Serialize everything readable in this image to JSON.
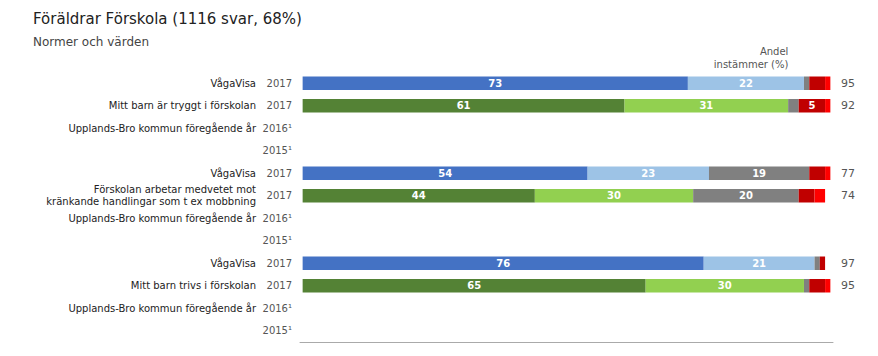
{
  "chart_data": {
    "type": "bar",
    "orientation": "horizontal",
    "stacked": true,
    "data_labels": true,
    "grid": false,
    "tick_labels": false,
    "title": "Föräldrar Förskola (1116 svar, 68%)",
    "subtitle": "Normer och värden",
    "annotations": [
      "Andel",
      "instämmer (%)"
    ],
    "categories": [
      "2017",
      "2017",
      "2016¹",
      "2015¹",
      "2017",
      "2017",
      "2016¹",
      "2015¹",
      "2017",
      "2017",
      "2016¹",
      "2015¹"
    ],
    "row_labels": [
      "VågaVisa",
      "Mitt barn är tryggt i förskolan",
      "Upplands-Bro kommun föregående år",
      null,
      "VågaVisa",
      "Förskolan arbetar medvetet mot\nkränkande handlingar som t ex mobbning",
      "Upplands-Bro kommun föregående år",
      null,
      "VågaVisa",
      "Mitt barn trivs i förskolan",
      "Upplands-Bro kommun föregående år",
      null
    ],
    "totals": [
      95,
      92,
      null,
      null,
      77,
      74,
      null,
      null,
      97,
      95,
      null,
      null
    ],
    "xlim": [
      -0.5,
      100.5
    ],
    "series": [
      {
        "values": [
          73,
          61,
          null,
          null,
          54,
          44,
          null,
          null,
          76,
          65,
          null,
          null
        ],
        "colors": [
          "#4472C4",
          "#548235",
          null,
          null,
          "#4472C4",
          "#548235",
          null,
          null,
          "#4472C4",
          "#548235",
          null,
          null
        ],
        "value_labels": [
          "73",
          "61",
          null,
          null,
          "54",
          "44",
          null,
          null,
          "76",
          "65",
          null,
          null
        ]
      },
      {
        "values": [
          22,
          31,
          null,
          null,
          23,
          30,
          null,
          null,
          21,
          30,
          null,
          null
        ],
        "colors": [
          "#9DC3E6",
          "#92D050",
          null,
          null,
          "#9DC3E6",
          "#92D050",
          null,
          null,
          "#9DC3E6",
          "#92D050",
          null,
          null
        ],
        "value_labels": [
          "22",
          "31",
          null,
          null,
          "23",
          "30",
          null,
          null,
          "21",
          "30",
          null,
          null
        ]
      },
      {
        "values": [
          1,
          2,
          null,
          null,
          19,
          20,
          null,
          null,
          1,
          1,
          null,
          null
        ],
        "colors": [
          "#808080",
          "#808080",
          null,
          null,
          "#808080",
          "#808080",
          null,
          null,
          "#808080",
          "#808080",
          null,
          null
        ],
        "value_labels": [
          null,
          null,
          null,
          null,
          "19",
          "20",
          null,
          null,
          null,
          null,
          null,
          null
        ]
      },
      {
        "values": [
          3,
          5,
          null,
          null,
          3,
          3,
          null,
          null,
          1,
          3,
          null,
          null
        ],
        "colors": [
          "#C00000",
          "#C00000",
          null,
          null,
          "#C00000",
          "#C00000",
          null,
          null,
          "#C00000",
          "#C00000",
          null,
          null
        ],
        "value_labels": [
          null,
          "5",
          null,
          null,
          null,
          null,
          null,
          null,
          null,
          null,
          null,
          null
        ]
      },
      {
        "values": [
          1,
          1,
          null,
          null,
          1,
          2,
          null,
          null,
          0,
          1,
          null,
          null
        ],
        "colors": [
          "#FF0000",
          "#FF0000",
          null,
          null,
          "#FF0000",
          "#FF0000",
          null,
          null,
          "#FF0000",
          "#FF0000",
          null,
          null
        ],
        "value_labels": [
          null,
          null,
          null,
          null,
          null,
          null,
          null,
          null,
          null,
          null,
          null,
          null
        ]
      }
    ]
  }
}
